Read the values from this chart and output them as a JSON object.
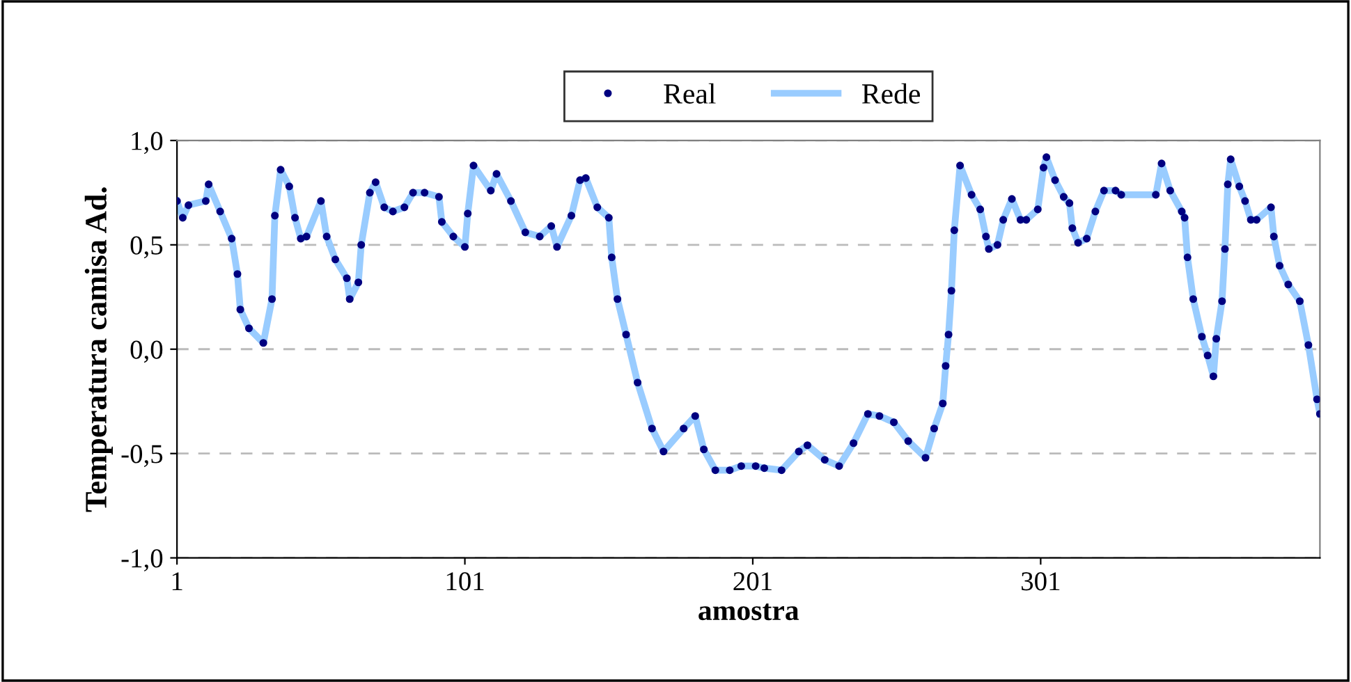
{
  "chart_data": {
    "type": "line",
    "xlabel": "amostra",
    "ylabel": "Temperatura camisa Ad.",
    "x": [
      1,
      3,
      5,
      11,
      12,
      16,
      20,
      22,
      23,
      26,
      31,
      34,
      35,
      37,
      40,
      42,
      44,
      46,
      51,
      53,
      56,
      60,
      61,
      64,
      65,
      68,
      70,
      73,
      76,
      80,
      83,
      87,
      92,
      93,
      97,
      101,
      102,
      104,
      110,
      112,
      117,
      122,
      127,
      131,
      133,
      138,
      141,
      143,
      147,
      151,
      152,
      154,
      157,
      161,
      166,
      170,
      177,
      181,
      184,
      188,
      193,
      197,
      202,
      205,
      211,
      217,
      220,
      226,
      231,
      236,
      241,
      245,
      250,
      255,
      261,
      264,
      267,
      268,
      269,
      270,
      271,
      273,
      277,
      280,
      282,
      283,
      286,
      288,
      291,
      294,
      296,
      300,
      302,
      303,
      306,
      309,
      311,
      312,
      314,
      317,
      320,
      323,
      327,
      329,
      341,
      343,
      346,
      350,
      351,
      352,
      354,
      357,
      359,
      361,
      362,
      364,
      365,
      366,
      367,
      370,
      372,
      374,
      376,
      381,
      382,
      384,
      387,
      391,
      394,
      397,
      398
    ],
    "series": [
      {
        "name": "Rede",
        "color": "#99ccff",
        "values": [
          0.71,
          0.63,
          0.69,
          0.71,
          0.79,
          0.66,
          0.53,
          0.36,
          0.19,
          0.1,
          0.03,
          0.24,
          0.64,
          0.86,
          0.78,
          0.63,
          0.53,
          0.54,
          0.71,
          0.54,
          0.43,
          0.34,
          0.24,
          0.32,
          0.5,
          0.75,
          0.8,
          0.68,
          0.66,
          0.68,
          0.75,
          0.75,
          0.73,
          0.61,
          0.54,
          0.49,
          0.65,
          0.88,
          0.76,
          0.84,
          0.71,
          0.56,
          0.54,
          0.59,
          0.49,
          0.64,
          0.81,
          0.82,
          0.68,
          0.63,
          0.44,
          0.24,
          0.07,
          -0.16,
          -0.38,
          -0.49,
          -0.38,
          -0.32,
          -0.48,
          -0.58,
          -0.58,
          -0.56,
          -0.56,
          -0.57,
          -0.58,
          -0.49,
          -0.46,
          -0.53,
          -0.56,
          -0.45,
          -0.31,
          -0.32,
          -0.35,
          -0.44,
          -0.52,
          -0.38,
          -0.26,
          -0.08,
          0.07,
          0.28,
          0.57,
          0.88,
          0.74,
          0.67,
          0.54,
          0.48,
          0.5,
          0.62,
          0.72,
          0.62,
          0.62,
          0.67,
          0.87,
          0.92,
          0.81,
          0.73,
          0.7,
          0.58,
          0.51,
          0.53,
          0.66,
          0.76,
          0.76,
          0.74,
          0.74,
          0.89,
          0.76,
          0.66,
          0.63,
          0.44,
          0.24,
          0.06,
          -0.03,
          -0.13,
          0.05,
          0.23,
          0.48,
          0.79,
          0.91,
          0.78,
          0.71,
          0.62,
          0.62,
          0.68,
          0.54,
          0.4,
          0.31,
          0.23,
          0.02,
          -0.24,
          -0.31
        ]
      },
      {
        "name": "Real",
        "type": "scatter",
        "marker": "circle",
        "color": "#000080",
        "values": [
          0.71,
          0.63,
          0.69,
          0.71,
          0.79,
          0.66,
          0.53,
          0.36,
          0.19,
          0.1,
          0.03,
          0.24,
          0.64,
          0.86,
          0.78,
          0.63,
          0.53,
          0.54,
          0.71,
          0.54,
          0.43,
          0.34,
          0.24,
          0.32,
          0.5,
          0.75,
          0.8,
          0.68,
          0.66,
          0.68,
          0.75,
          0.75,
          0.73,
          0.61,
          0.54,
          0.49,
          0.65,
          0.88,
          0.76,
          0.84,
          0.71,
          0.56,
          0.54,
          0.59,
          0.49,
          0.64,
          0.81,
          0.82,
          0.68,
          0.63,
          0.44,
          0.24,
          0.07,
          -0.16,
          -0.38,
          -0.49,
          -0.38,
          -0.32,
          -0.48,
          -0.58,
          -0.58,
          -0.56,
          -0.56,
          -0.57,
          -0.58,
          -0.49,
          -0.46,
          -0.53,
          -0.56,
          -0.45,
          -0.31,
          -0.32,
          -0.35,
          -0.44,
          -0.52,
          -0.38,
          -0.26,
          -0.08,
          0.07,
          0.28,
          0.57,
          0.88,
          0.74,
          0.67,
          0.54,
          0.48,
          0.5,
          0.62,
          0.72,
          0.62,
          0.62,
          0.67,
          0.87,
          0.92,
          0.81,
          0.73,
          0.7,
          0.58,
          0.51,
          0.53,
          0.66,
          0.76,
          0.76,
          0.74,
          0.74,
          0.89,
          0.76,
          0.66,
          0.63,
          0.44,
          0.24,
          0.06,
          -0.03,
          -0.13,
          0.05,
          0.23,
          0.48,
          0.79,
          0.91,
          0.78,
          0.71,
          0.62,
          0.62,
          0.68,
          0.54,
          0.4,
          0.31,
          0.23,
          0.02,
          -0.24,
          -0.31
        ]
      }
    ],
    "xlim": [
      1,
      398
    ],
    "xticks": [
      1,
      101,
      201,
      301
    ],
    "ylim": [
      -1.0,
      1.0
    ],
    "yticks": [
      {
        "value": -1.0,
        "label": "-1,0"
      },
      {
        "value": -0.5,
        "label": "-0,5"
      },
      {
        "value": 0.0,
        "label": "0,0"
      },
      {
        "value": 0.5,
        "label": "0,5"
      },
      {
        "value": 1.0,
        "label": "1,0"
      }
    ],
    "grid": "y",
    "legend": "top"
  }
}
